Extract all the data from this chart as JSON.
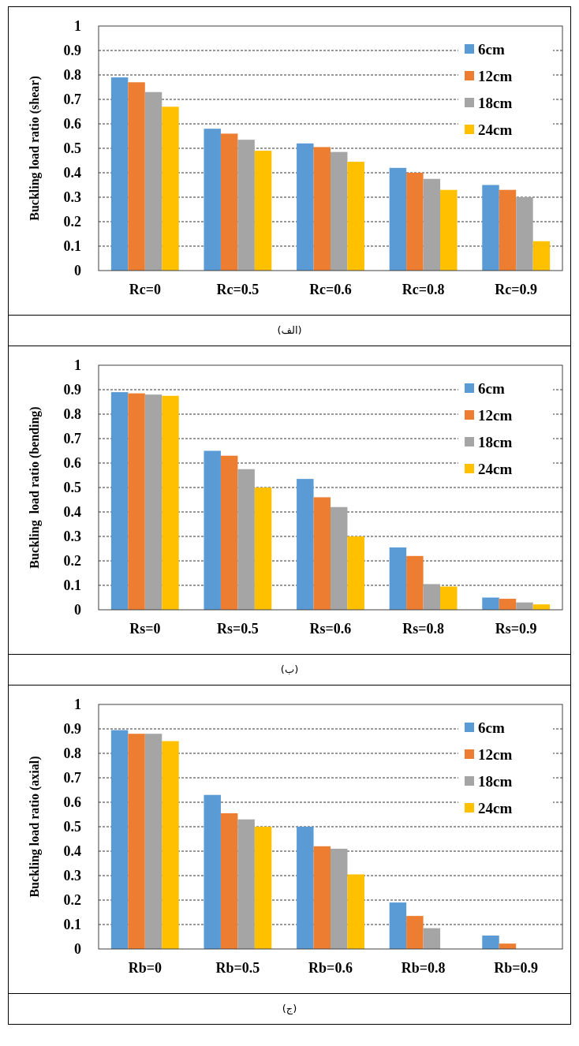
{
  "chart_data": [
    {
      "type": "bar",
      "ylabel": "Buckling load ratio (shear)",
      "categories": [
        "Rc=0",
        "Rc=0.5",
        "Rc=0.6",
        "Rc=0.8",
        "Rc=0.9"
      ],
      "series": [
        {
          "name": "6cm",
          "color": "#5b9bd5",
          "values": [
            0.79,
            0.58,
            0.52,
            0.42,
            0.35
          ]
        },
        {
          "name": "12cm",
          "color": "#ed7d31",
          "values": [
            0.77,
            0.56,
            0.505,
            0.4,
            0.33
          ]
        },
        {
          "name": "18cm",
          "color": "#a5a5a5",
          "values": [
            0.73,
            0.535,
            0.485,
            0.375,
            0.3
          ]
        },
        {
          "name": "24cm",
          "color": "#ffc000",
          "values": [
            0.67,
            0.49,
            0.445,
            0.33,
            0.12
          ]
        }
      ],
      "ylim": [
        0,
        1
      ],
      "yticks": [
        0,
        0.1,
        0.2,
        0.3,
        0.4,
        0.5,
        0.6,
        0.7,
        0.8,
        0.9,
        1
      ],
      "grid": "y",
      "legend": "top right",
      "annotations": [
        "(الف)"
      ]
    },
    {
      "type": "bar",
      "ylabel": "Buckling  load ratio (bending)",
      "categories": [
        "Rs=0",
        "Rs=0.5",
        "Rs=0.6",
        "Rs=0.8",
        "Rs=0.9"
      ],
      "series": [
        {
          "name": "6cm",
          "color": "#5b9bd5",
          "values": [
            0.89,
            0.65,
            0.535,
            0.255,
            0.05
          ]
        },
        {
          "name": "12cm",
          "color": "#ed7d31",
          "values": [
            0.885,
            0.63,
            0.46,
            0.22,
            0.045
          ]
        },
        {
          "name": "18cm",
          "color": "#a5a5a5",
          "values": [
            0.88,
            0.575,
            0.42,
            0.105,
            0.03
          ]
        },
        {
          "name": "24cm",
          "color": "#ffc000",
          "values": [
            0.875,
            0.5,
            0.3,
            0.095,
            0.022
          ]
        }
      ],
      "ylim": [
        0,
        1
      ],
      "yticks": [
        0,
        0.1,
        0.2,
        0.3,
        0.4,
        0.5,
        0.6,
        0.7,
        0.8,
        0.9,
        1
      ],
      "grid": "y",
      "legend": "top right",
      "annotations": [
        "(ب)"
      ]
    },
    {
      "type": "bar",
      "ylabel": "Buckling load ratio (axial)",
      "categories": [
        "Rb=0",
        "Rb=0.5",
        "Rb=0.6",
        "Rb=0.8",
        "Rb=0.9"
      ],
      "series": [
        {
          "name": "6cm",
          "color": "#5b9bd5",
          "values": [
            0.895,
            0.63,
            0.5,
            0.19,
            0.055
          ]
        },
        {
          "name": "12cm",
          "color": "#ed7d31",
          "values": [
            0.88,
            0.555,
            0.42,
            0.135,
            0.022
          ]
        },
        {
          "name": "18cm",
          "color": "#a5a5a5",
          "values": [
            0.88,
            0.53,
            0.41,
            0.085,
            0
          ]
        },
        {
          "name": "24cm",
          "color": "#ffc000",
          "values": [
            0.85,
            0.5,
            0.305,
            0,
            0
          ]
        }
      ],
      "ylim": [
        0,
        1
      ],
      "yticks": [
        0,
        0.1,
        0.2,
        0.3,
        0.4,
        0.5,
        0.6,
        0.7,
        0.8,
        0.9,
        1
      ],
      "grid": "y",
      "legend": "top right",
      "annotations": [
        "(ج)"
      ]
    }
  ]
}
